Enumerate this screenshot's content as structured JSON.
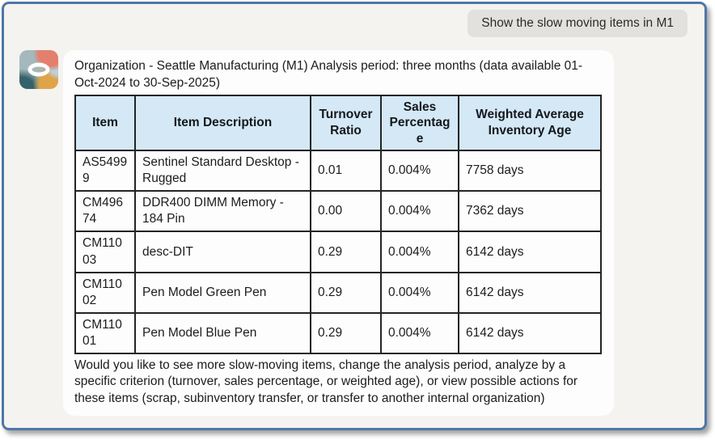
{
  "colors": {
    "frame-border": "#4d77a7",
    "chat-bg": "#f4f3ef",
    "user-bubble-bg": "#e2e1de",
    "bot-bubble-bg": "#fdfdfd",
    "table-header-bg": "#d4e8f6"
  },
  "user_message": {
    "text": "Show the slow moving items in M1"
  },
  "bot_message": {
    "intro": "Organization - Seattle Manufacturing (M1) Analysis period: three months (data available 01-Oct-2024 to 30-Sep-2025)",
    "table": {
      "headers": [
        "Item",
        "Item Description",
        "Turnover Ratio",
        "Sales Percentage",
        "Weighted Average Inventory Age"
      ],
      "rows": [
        [
          "AS54999",
          "Sentinel Standard Desktop - Rugged",
          "0.01",
          "0.004%",
          "7758 days"
        ],
        [
          "CM49674",
          "DDR400 DIMM Memory - 184 Pin",
          "0.00",
          "0.004%",
          "7362 days"
        ],
        [
          "CM11003",
          "desc-DIT",
          "0.29",
          "0.004%",
          "6142 days"
        ],
        [
          "CM11002",
          "Pen Model Green Pen",
          "0.29",
          "0.004%",
          "6142 days"
        ],
        [
          "CM11001",
          "Pen Model Blue Pen",
          "0.29",
          "0.004%",
          "6142 days"
        ]
      ],
      "column_keys": [
        "item",
        "description",
        "turnover-ratio",
        "sales-percentage",
        "inventory-age"
      ]
    },
    "footer": "Would you like to see more slow-moving items, change the analysis period, analyze by a specific criterion (turnover, sales percentage, or weighted age), or view possible actions for these items (scrap, subinventory transfer, or transfer to another internal organization)"
  }
}
